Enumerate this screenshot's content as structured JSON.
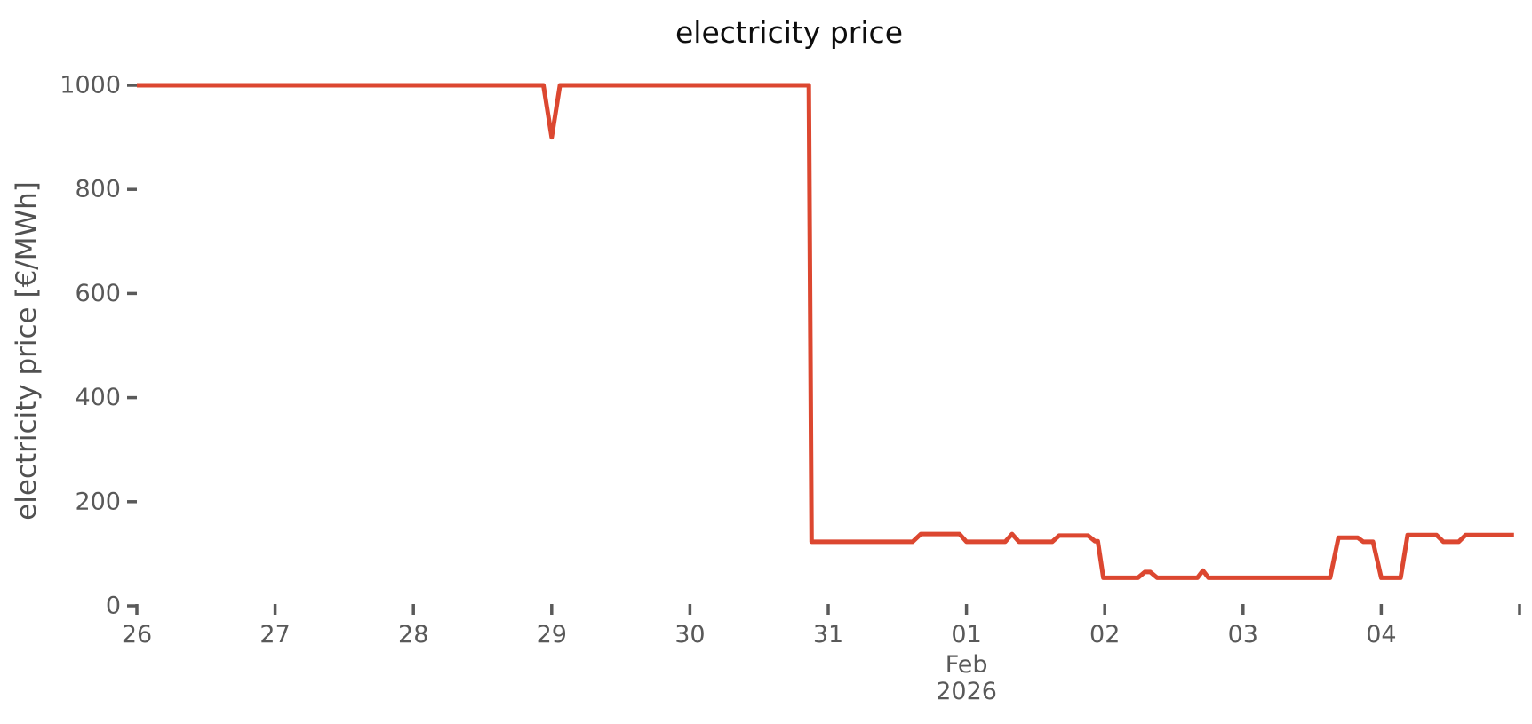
{
  "page": {
    "background_color": "#ffffff"
  },
  "chart_data": {
    "type": "line",
    "title": "electricity price",
    "xlabel": "",
    "ylabel": "electricity price [€/MWh]",
    "legend": "none",
    "grid": false,
    "spines": "none",
    "line_color": "#dc4730",
    "line_width": 5,
    "tick_text_color": "#595959",
    "tick_mark_color": "#5a5a5a",
    "axis_label_color": "#515151",
    "title_color": "#0d0d0d",
    "x_unit": "days since 26 Jan 2026 00:00",
    "xlim": [
      0,
      10.08
    ],
    "ylim": [
      0,
      1000
    ],
    "y_ticks": [
      {
        "value": 0,
        "label": "0"
      },
      {
        "value": 200,
        "label": "200"
      },
      {
        "value": 400,
        "label": "400"
      },
      {
        "value": 600,
        "label": "600"
      },
      {
        "value": 800,
        "label": "800"
      },
      {
        "value": 1000,
        "label": "1000"
      }
    ],
    "x_ticks": [
      {
        "t": 0,
        "label": "26",
        "sublabels": []
      },
      {
        "t": 1,
        "label": "27",
        "sublabels": []
      },
      {
        "t": 2,
        "label": "28",
        "sublabels": []
      },
      {
        "t": 3,
        "label": "29",
        "sublabels": []
      },
      {
        "t": 4,
        "label": "30",
        "sublabels": []
      },
      {
        "t": 5,
        "label": "31",
        "sublabels": []
      },
      {
        "t": 6,
        "label": "01",
        "sublabels": [
          "Feb",
          "2026"
        ]
      },
      {
        "t": 7,
        "label": "02",
        "sublabels": []
      },
      {
        "t": 8,
        "label": "03",
        "sublabels": []
      },
      {
        "t": 9,
        "label": "04",
        "sublabels": []
      },
      {
        "t": 10,
        "label": "",
        "sublabels": []
      }
    ],
    "series": [
      {
        "name": "electricity price [€/MWh]",
        "points": [
          [
            0.0,
            1000
          ],
          [
            2.94,
            1000
          ],
          [
            3.0,
            900
          ],
          [
            3.06,
            1000
          ],
          [
            4.86,
            1000
          ],
          [
            4.88,
            123
          ],
          [
            5.61,
            123
          ],
          [
            5.67,
            138
          ],
          [
            5.95,
            138
          ],
          [
            6.0,
            123
          ],
          [
            6.28,
            123
          ],
          [
            6.33,
            138
          ],
          [
            6.38,
            123
          ],
          [
            6.62,
            123
          ],
          [
            6.67,
            135
          ],
          [
            6.88,
            135
          ],
          [
            6.93,
            124
          ],
          [
            6.95,
            124
          ],
          [
            6.99,
            54
          ],
          [
            7.24,
            54
          ],
          [
            7.29,
            65
          ],
          [
            7.33,
            65
          ],
          [
            7.38,
            54
          ],
          [
            7.67,
            54
          ],
          [
            7.71,
            68
          ],
          [
            7.75,
            54
          ],
          [
            8.63,
            54
          ],
          [
            8.69,
            131
          ],
          [
            8.83,
            131
          ],
          [
            8.87,
            123
          ],
          [
            8.94,
            123
          ],
          [
            9.0,
            54
          ],
          [
            9.14,
            54
          ],
          [
            9.19,
            136
          ],
          [
            9.4,
            136
          ],
          [
            9.45,
            123
          ],
          [
            9.56,
            123
          ],
          [
            9.61,
            136
          ],
          [
            9.96,
            136
          ]
        ]
      }
    ]
  }
}
